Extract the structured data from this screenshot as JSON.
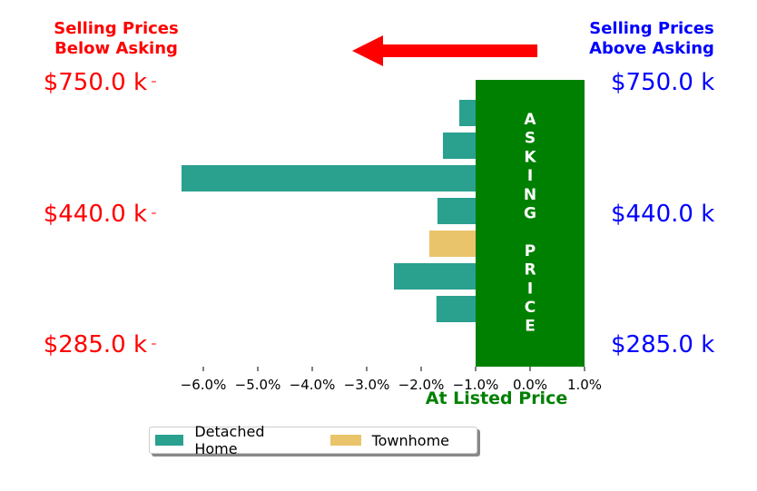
{
  "annotations": {
    "left_note": "Selling Prices\nBelow Asking",
    "right_note": "Selling Prices\nAbove Asking",
    "asking_band_text": "ASKING PRICE",
    "xlabel": "At Listed Price"
  },
  "colors": {
    "detached": "#2aa08f",
    "townhome": "#e9c46a",
    "band": "#008000",
    "arrow": "#ff0000",
    "left_labels": "#ff0000",
    "right_labels": "#0000ff",
    "xlabel": "#008000"
  },
  "chart_data": {
    "type": "bar",
    "orientation": "horizontal",
    "xlim": [
      -6.6,
      1.0
    ],
    "x_ticks": [
      -6.0,
      -5.0,
      -4.0,
      -3.0,
      -2.0,
      -1.0,
      0.0,
      1.0
    ],
    "x_tick_labels": [
      "−6.0%",
      "−5.0%",
      "−4.0%",
      "−3.0%",
      "−2.0%",
      "−1.0%",
      "0.0%",
      "1.0%"
    ],
    "y_tick_labels_left": [
      "$750.0 k",
      "$440.0 k",
      "$285.0 k"
    ],
    "y_tick_labels_right": [
      "$750.0 k",
      "$440.0 k",
      "$285.0 k"
    ],
    "band_range": [
      -1.0,
      1.0
    ],
    "bars": [
      {
        "series": "Detached Home",
        "value": -1.3
      },
      {
        "series": "Detached Home",
        "value": -1.6
      },
      {
        "series": "Detached Home",
        "value": -6.4
      },
      {
        "series": "Detached Home",
        "value": -1.7
      },
      {
        "series": "Townhome",
        "value": -1.85
      },
      {
        "series": "Detached Home",
        "value": -2.5
      },
      {
        "series": "Detached Home",
        "value": -1.72
      }
    ],
    "legend": {
      "placement": "bottom-center",
      "entries": [
        {
          "name": "Detached Home",
          "color": "#2aa08f"
        },
        {
          "name": "Townhome",
          "color": "#e9c46a"
        }
      ]
    },
    "grid": false
  }
}
